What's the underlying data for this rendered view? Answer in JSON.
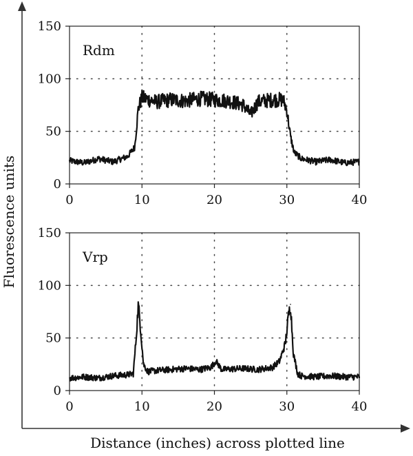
{
  "chart_data": {
    "type": "line",
    "ylabel": "Fluorescence units",
    "xlabel": "Distance (inches) across plotted line",
    "grid": "dotted",
    "panels": [
      {
        "label": "Rdm",
        "xlim": [
          0,
          40
        ],
        "ylim": [
          0,
          150
        ],
        "xticks": [
          0,
          10,
          20,
          30,
          40
        ],
        "yticks": [
          0,
          50,
          100,
          150
        ],
        "series": [
          {
            "x": [
              0,
              2,
              4,
              6,
              8,
              9,
              9.5,
              10,
              12,
              14,
              16,
              18,
              20,
              22,
              24,
              25,
              26,
              28,
              29.5,
              30,
              30.5,
              31,
              32,
              34,
              36,
              38,
              40
            ],
            "values": [
              22,
              20,
              24,
              21,
              26,
              35,
              72,
              82,
              78,
              80,
              79,
              81,
              80,
              79,
              75,
              66,
              78,
              80,
              80,
              70,
              45,
              30,
              24,
              21,
              23,
              20,
              21
            ]
          }
        ]
      },
      {
        "label": "Vrp",
        "xlim": [
          0,
          40
        ],
        "ylim": [
          0,
          150
        ],
        "xticks": [
          0,
          10,
          20,
          30,
          40
        ],
        "yticks": [
          0,
          50,
          100,
          150
        ],
        "series": [
          {
            "x": [
              0,
              2,
              4,
              6,
              8,
              8.8,
              9.2,
              9.5,
              9.8,
              10.2,
              10.8,
              12,
              14,
              16,
              18,
              19.5,
              20.2,
              21,
              24,
              26,
              28,
              29,
              29.8,
              30.2,
              30.5,
              30.9,
              31.5,
              32,
              34,
              36,
              38,
              40
            ],
            "values": [
              12,
              13,
              12,
              14,
              15,
              16,
              50,
              82,
              60,
              25,
              18,
              19,
              20,
              21,
              20,
              22,
              28,
              20,
              21,
              20,
              22,
              28,
              45,
              70,
              82,
              35,
              16,
              14,
              13,
              14,
              13,
              13
            ]
          }
        ]
      }
    ]
  }
}
